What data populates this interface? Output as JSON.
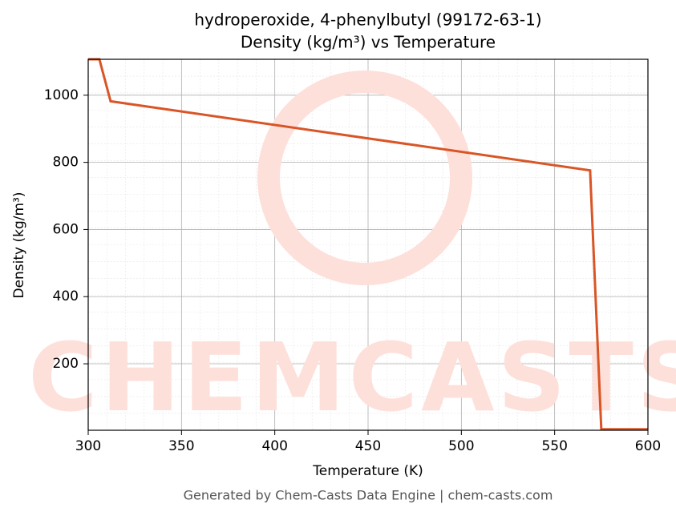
{
  "chart_data": {
    "type": "line",
    "title": "hydroperoxide, 4-phenylbutyl (99172-63-1)",
    "subtitle": "Density (kg/m³) vs Temperature",
    "x_label": "Temperature (K)",
    "y_label": "Density (kg/m³)",
    "watermark": "CHEMCASTS",
    "footer": "Generated by Chem-Casts Data Engine | chem-casts.com",
    "x": [
      300,
      306,
      312,
      569,
      575,
      600
    ],
    "series": [
      {
        "name": "Density",
        "color": "#d95526",
        "values": [
          1107,
          1107,
          982,
          776,
          5,
          5
        ]
      }
    ],
    "xlim": [
      300,
      600
    ],
    "xticks": [
      300,
      350,
      400,
      450,
      500,
      550,
      600
    ],
    "ylim": [
      2,
      1107
    ],
    "yticks": [
      200,
      400,
      600,
      800,
      1000
    ],
    "grid": true
  }
}
